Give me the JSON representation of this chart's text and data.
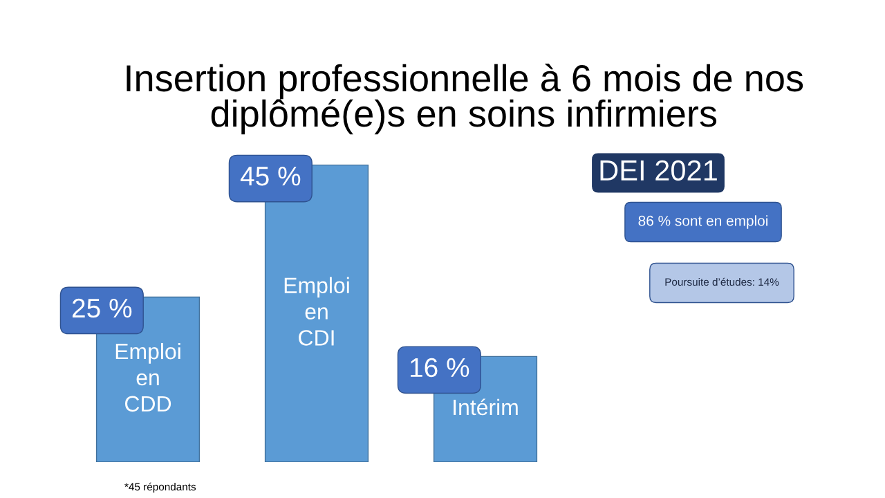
{
  "chart_data": {
    "type": "bar",
    "title": "Insertion professionnelle à 6 mois de nos diplômé(e)s en soins infirmiers",
    "subtitle": "DEI 2021",
    "categories": [
      "Emploi en CDD",
      "Emploi en CDI",
      "Intérim"
    ],
    "values": [
      25,
      45,
      16
    ],
    "value_labels": [
      "25 %",
      "45 %",
      "16 %"
    ],
    "color": "#5b9bd5",
    "tick_labels": false,
    "annotations": [
      "86 % sont en emploi",
      "Poursuite d’études: 14%",
      "*45 répondants"
    ]
  }
}
